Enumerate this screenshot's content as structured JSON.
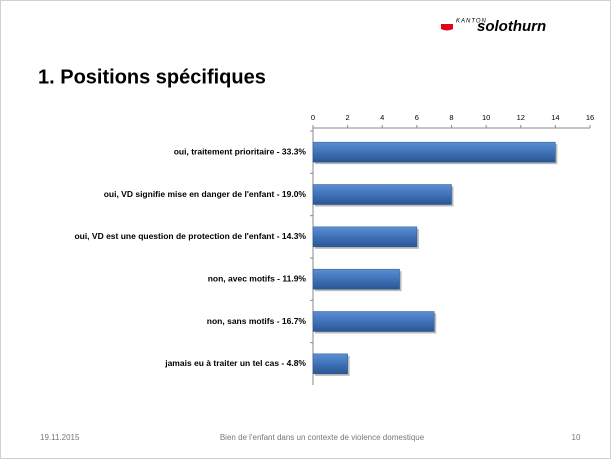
{
  "header": {
    "logo_small": "KANTON",
    "logo": "solothurn"
  },
  "chart_data": {
    "type": "bar",
    "orientation": "horizontal",
    "title": "1.  Positions spécifiques",
    "categories": [
      "oui, traitement prioritaire - 33.3%",
      "oui, VD signifie mise en danger de l'enfant - 19.0%",
      "oui, VD est une question de protection de l'enfant - 14.3%",
      "non, avec motifs - 11.9%",
      "non, sans motifs - 16.7%",
      "jamais eu à traiter un tel cas - 4.8%"
    ],
    "values": [
      14,
      8,
      6,
      5,
      7,
      2
    ],
    "color": "#3f72b8",
    "xlim": [
      0,
      16
    ],
    "xticks": [
      0,
      2,
      4,
      6,
      8,
      10,
      12,
      14,
      16
    ],
    "grid": false
  },
  "footer": {
    "date": "19.11.2015",
    "text": "Bien de l'enfant dans un contexte de violence domestique",
    "page": "10"
  }
}
